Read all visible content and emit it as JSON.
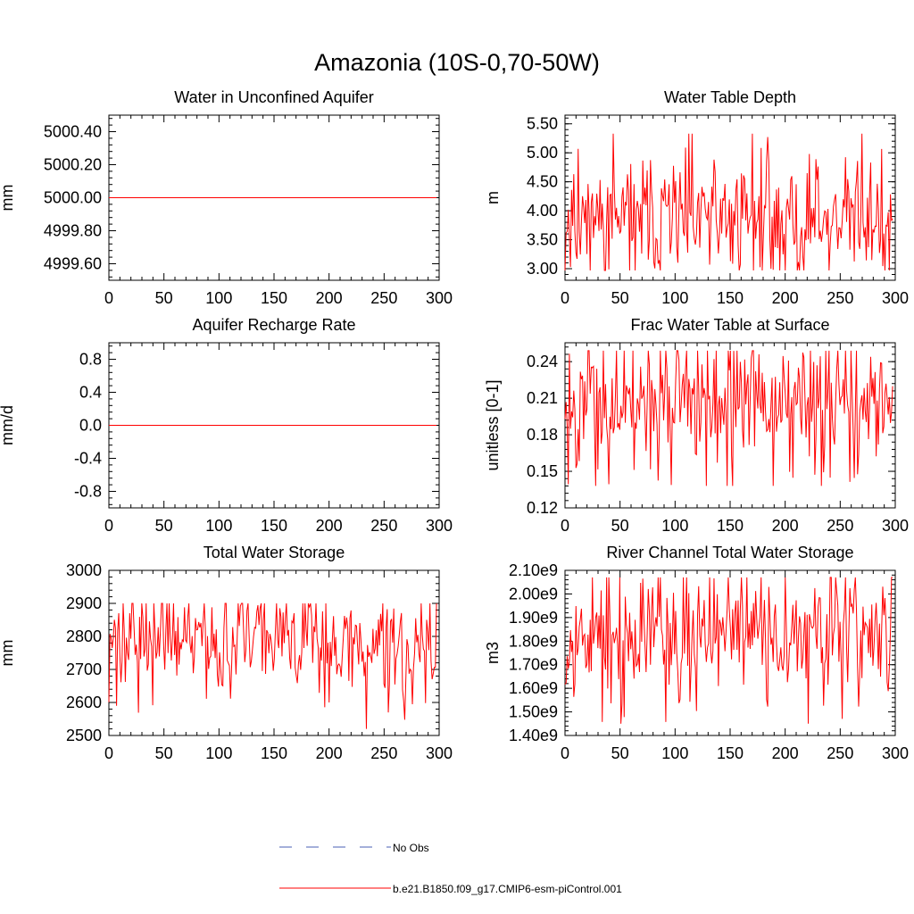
{
  "title": "Amazonia (10S-0,70-50W)",
  "legend": {
    "entries": [
      {
        "label": "No Obs",
        "color": "#4a5fb5",
        "dash": true
      },
      {
        "label": "b.e21.B1850.f09_g17.CMIP6-esm-piControl.001",
        "color": "#ff0000",
        "dash": false
      }
    ]
  },
  "chart_data": [
    {
      "type": "line",
      "title": "Water in Unconfined Aquifer",
      "ylabel": "mm",
      "xlim": [
        0,
        300
      ],
      "ylim": [
        4999.5,
        5000.5
      ],
      "xticks": [
        0,
        50,
        100,
        150,
        200,
        250,
        300
      ],
      "yticks": [
        4999.6,
        4999.8,
        5000.0,
        5000.2,
        5000.4
      ],
      "ytick_labels": [
        "4999.60",
        "4999.80",
        "5000.00",
        "5000.20",
        "5000.40"
      ],
      "series": [
        {
          "name": "b.e21.B1850.f09_g17.CMIP6-esm-piControl.001",
          "constant": 5000.0,
          "n": 300
        }
      ]
    },
    {
      "type": "line",
      "title": "Water Table Depth",
      "ylabel": "m",
      "xlim": [
        0,
        300
      ],
      "ylim": [
        2.8,
        5.65
      ],
      "xticks": [
        0,
        50,
        100,
        150,
        200,
        250,
        300
      ],
      "yticks": [
        3.0,
        3.5,
        4.0,
        4.5,
        5.0,
        5.5
      ],
      "ytick_labels": [
        "3.00",
        "3.50",
        "4.00",
        "4.50",
        "5.00",
        "5.50"
      ],
      "series": [
        {
          "name": "b.e21.B1850.f09_g17.CMIP6-esm-piControl.001",
          "mean": 3.85,
          "amp": 0.4,
          "min": 2.97,
          "max": 5.33,
          "seed": 11,
          "n": 300
        }
      ]
    },
    {
      "type": "line",
      "title": "Aquifer Recharge Rate",
      "ylabel": "mm/d",
      "xlim": [
        0,
        300
      ],
      "ylim": [
        -1.0,
        1.0
      ],
      "xticks": [
        0,
        50,
        100,
        150,
        200,
        250,
        300
      ],
      "yticks": [
        -0.8,
        -0.4,
        0.0,
        0.4,
        0.8
      ],
      "ytick_labels": [
        "-0.8",
        "-0.4",
        "0.0",
        "0.4",
        "0.8"
      ],
      "series": [
        {
          "name": "b.e21.B1850.f09_g17.CMIP6-esm-piControl.001",
          "constant": 0.0,
          "n": 300
        }
      ]
    },
    {
      "type": "line",
      "title": "Frac Water Table at Surface",
      "ylabel": "unitless [0-1]",
      "xlim": [
        0,
        300
      ],
      "ylim": [
        0.12,
        0.2555
      ],
      "xticks": [
        0,
        50,
        100,
        150,
        200,
        250,
        300
      ],
      "yticks": [
        0.12,
        0.15,
        0.18,
        0.21,
        0.24
      ],
      "ytick_labels": [
        "0.12",
        "0.15",
        "0.18",
        "0.21",
        "0.24"
      ],
      "series": [
        {
          "name": "b.e21.B1850.f09_g17.CMIP6-esm-piControl.001",
          "mean": 0.207,
          "amp": 0.02,
          "min": 0.138,
          "max": 0.249,
          "seed": 23,
          "n": 300
        }
      ]
    },
    {
      "type": "line",
      "title": "Total Water Storage",
      "ylabel": "mm",
      "xlim": [
        0,
        300
      ],
      "ylim": [
        2500,
        3000
      ],
      "xticks": [
        0,
        50,
        100,
        150,
        200,
        250,
        300
      ],
      "yticks": [
        2500,
        2600,
        2700,
        2800,
        2900,
        3000
      ],
      "ytick_labels": [
        "2500",
        "2600",
        "2700",
        "2800",
        "2900",
        "3000"
      ],
      "series": [
        {
          "name": "b.e21.B1850.f09_g17.CMIP6-esm-piControl.001",
          "mean": 2785,
          "amp": 60,
          "min": 2520,
          "max": 2900,
          "seed": 37,
          "n": 300
        }
      ]
    },
    {
      "type": "line",
      "title": "River Channel Total Water Storage",
      "ylabel": "m3",
      "xlim": [
        0,
        300
      ],
      "ylim": [
        1400000000.0,
        2100000000.0
      ],
      "xticks": [
        0,
        50,
        100,
        150,
        200,
        250,
        300
      ],
      "yticks": [
        1400000000.0,
        1500000000.0,
        1600000000.0,
        1700000000.0,
        1800000000.0,
        1900000000.0,
        2000000000.0,
        2100000000.0
      ],
      "ytick_labels": [
        "1.40e9",
        "1.50e9",
        "1.60e9",
        "1.70e9",
        "1.80e9",
        "1.90e9",
        "2.00e9",
        "2.10e9"
      ],
      "series": [
        {
          "name": "b.e21.B1850.f09_g17.CMIP6-esm-piControl.001",
          "mean": 1830000000.0,
          "amp": 100000000.0,
          "min": 1450000000.0,
          "max": 2070000000.0,
          "seed": 53,
          "n": 300
        }
      ]
    }
  ]
}
